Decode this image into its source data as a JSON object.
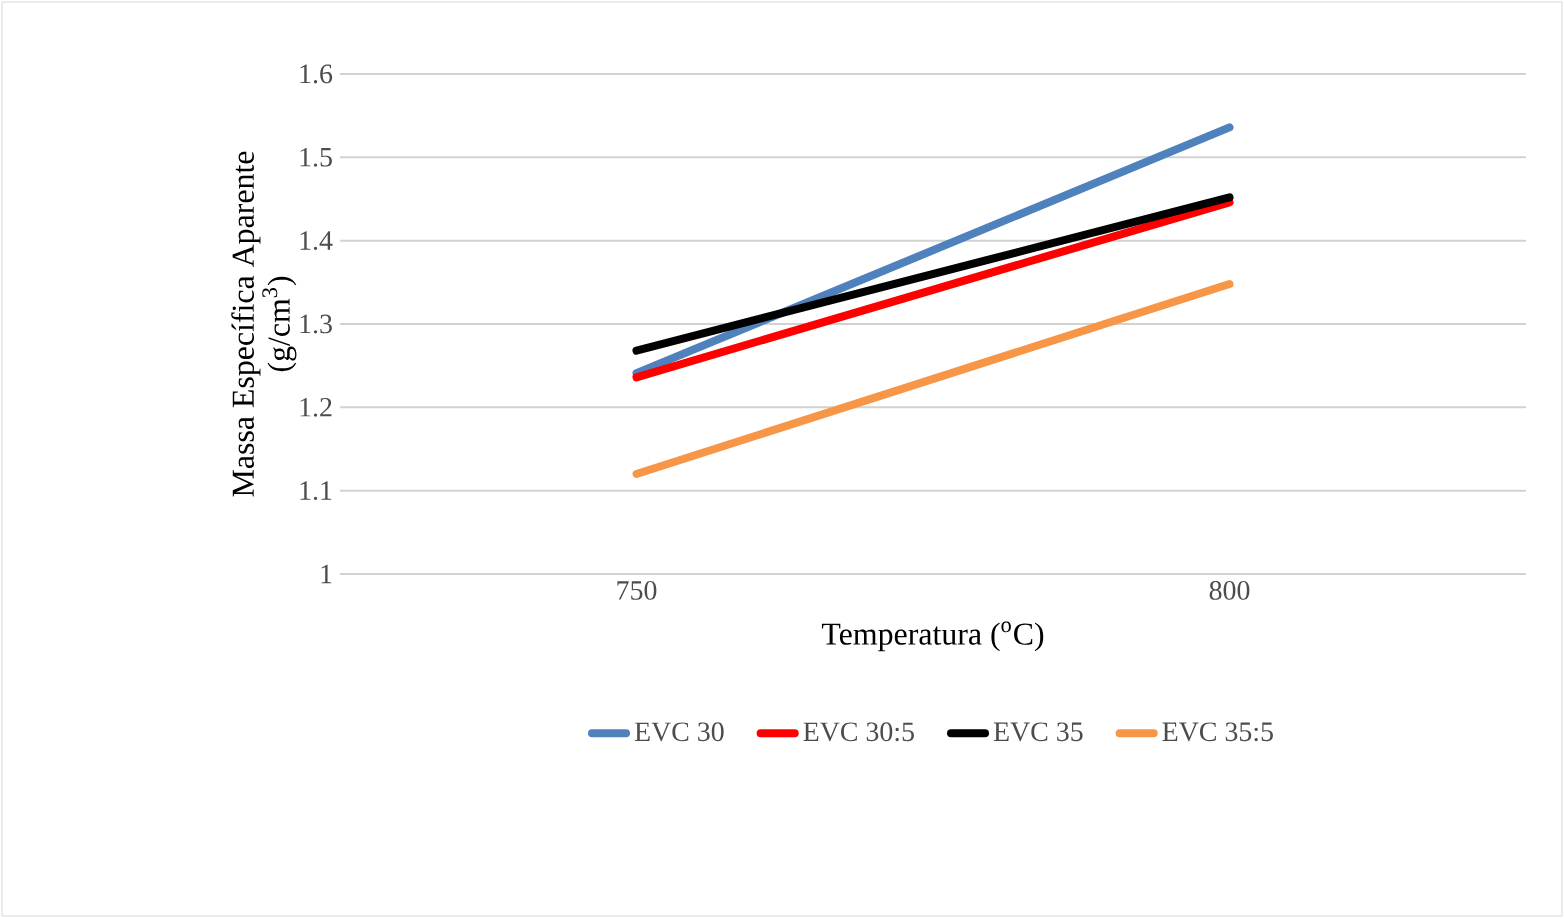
{
  "chart_data": {
    "type": "line",
    "xlabel": "Temperatura ($^{o}$C)",
    "ylabel": "Massa Específica Aparente (g/cm$^{3}$)",
    "categories": [
      "750",
      "800"
    ],
    "series": [
      {
        "name": "EVC 30",
        "color": "#4f81bd",
        "values": [
          1.241,
          1.536
        ]
      },
      {
        "name": "EVC 30:5",
        "color": "#ff0000",
        "values": [
          1.236,
          1.446
        ]
      },
      {
        "name": "EVC 35",
        "color": "#000000",
        "values": [
          1.268,
          1.452
        ]
      },
      {
        "name": "EVC 35:5",
        "color": "#f79646",
        "values": [
          1.12,
          1.348
        ]
      }
    ],
    "ylim": [
      1,
      1.6
    ],
    "yticks": [
      1,
      1.1,
      1.2,
      1.3,
      1.4,
      1.5,
      1.6
    ],
    "grid": "y",
    "legend": "bottom",
    "marker": "none",
    "line_style": "solid"
  }
}
